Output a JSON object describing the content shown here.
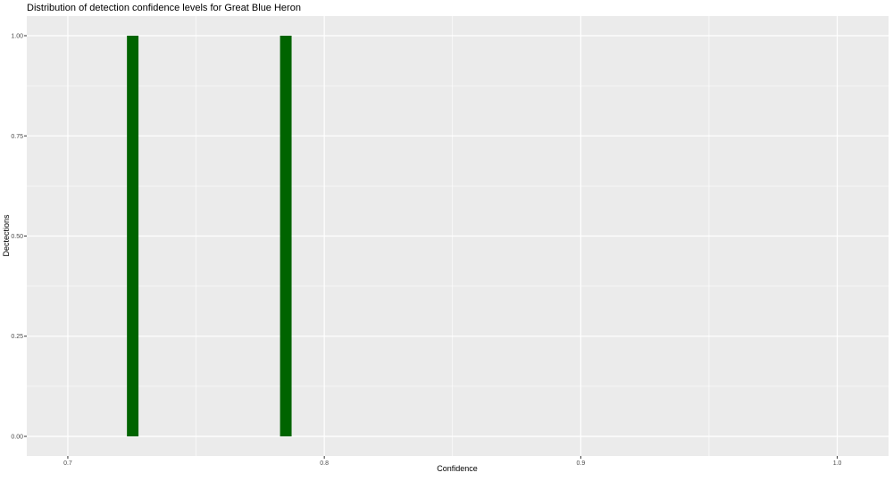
{
  "chart_data": {
    "type": "bar",
    "title": "Distribution of detection confidence levels for Great Blue Heron",
    "xlabel": "Confidence",
    "ylabel": "Dectections",
    "x": [
      0.7253,
      0.785
    ],
    "values": [
      1,
      1
    ],
    "bin_width": 0.0045,
    "xlim": [
      0.684,
      1.02
    ],
    "ylim": [
      -0.049,
      1.049
    ],
    "x_ticks": [
      0.7,
      0.8,
      0.9,
      1.0
    ],
    "x_tick_labels": [
      "0.7",
      "0.8",
      "0.9",
      "1.0"
    ],
    "y_ticks": [
      0,
      0.25,
      0.5,
      0.75,
      1
    ],
    "y_tick_labels": [
      "0.00",
      "0.25",
      "0.50",
      "0.75",
      "1.00"
    ],
    "grid": true,
    "colors": {
      "bar": "#006400",
      "panel": "#EBEBEB",
      "grid": "#FFFFFF"
    }
  }
}
